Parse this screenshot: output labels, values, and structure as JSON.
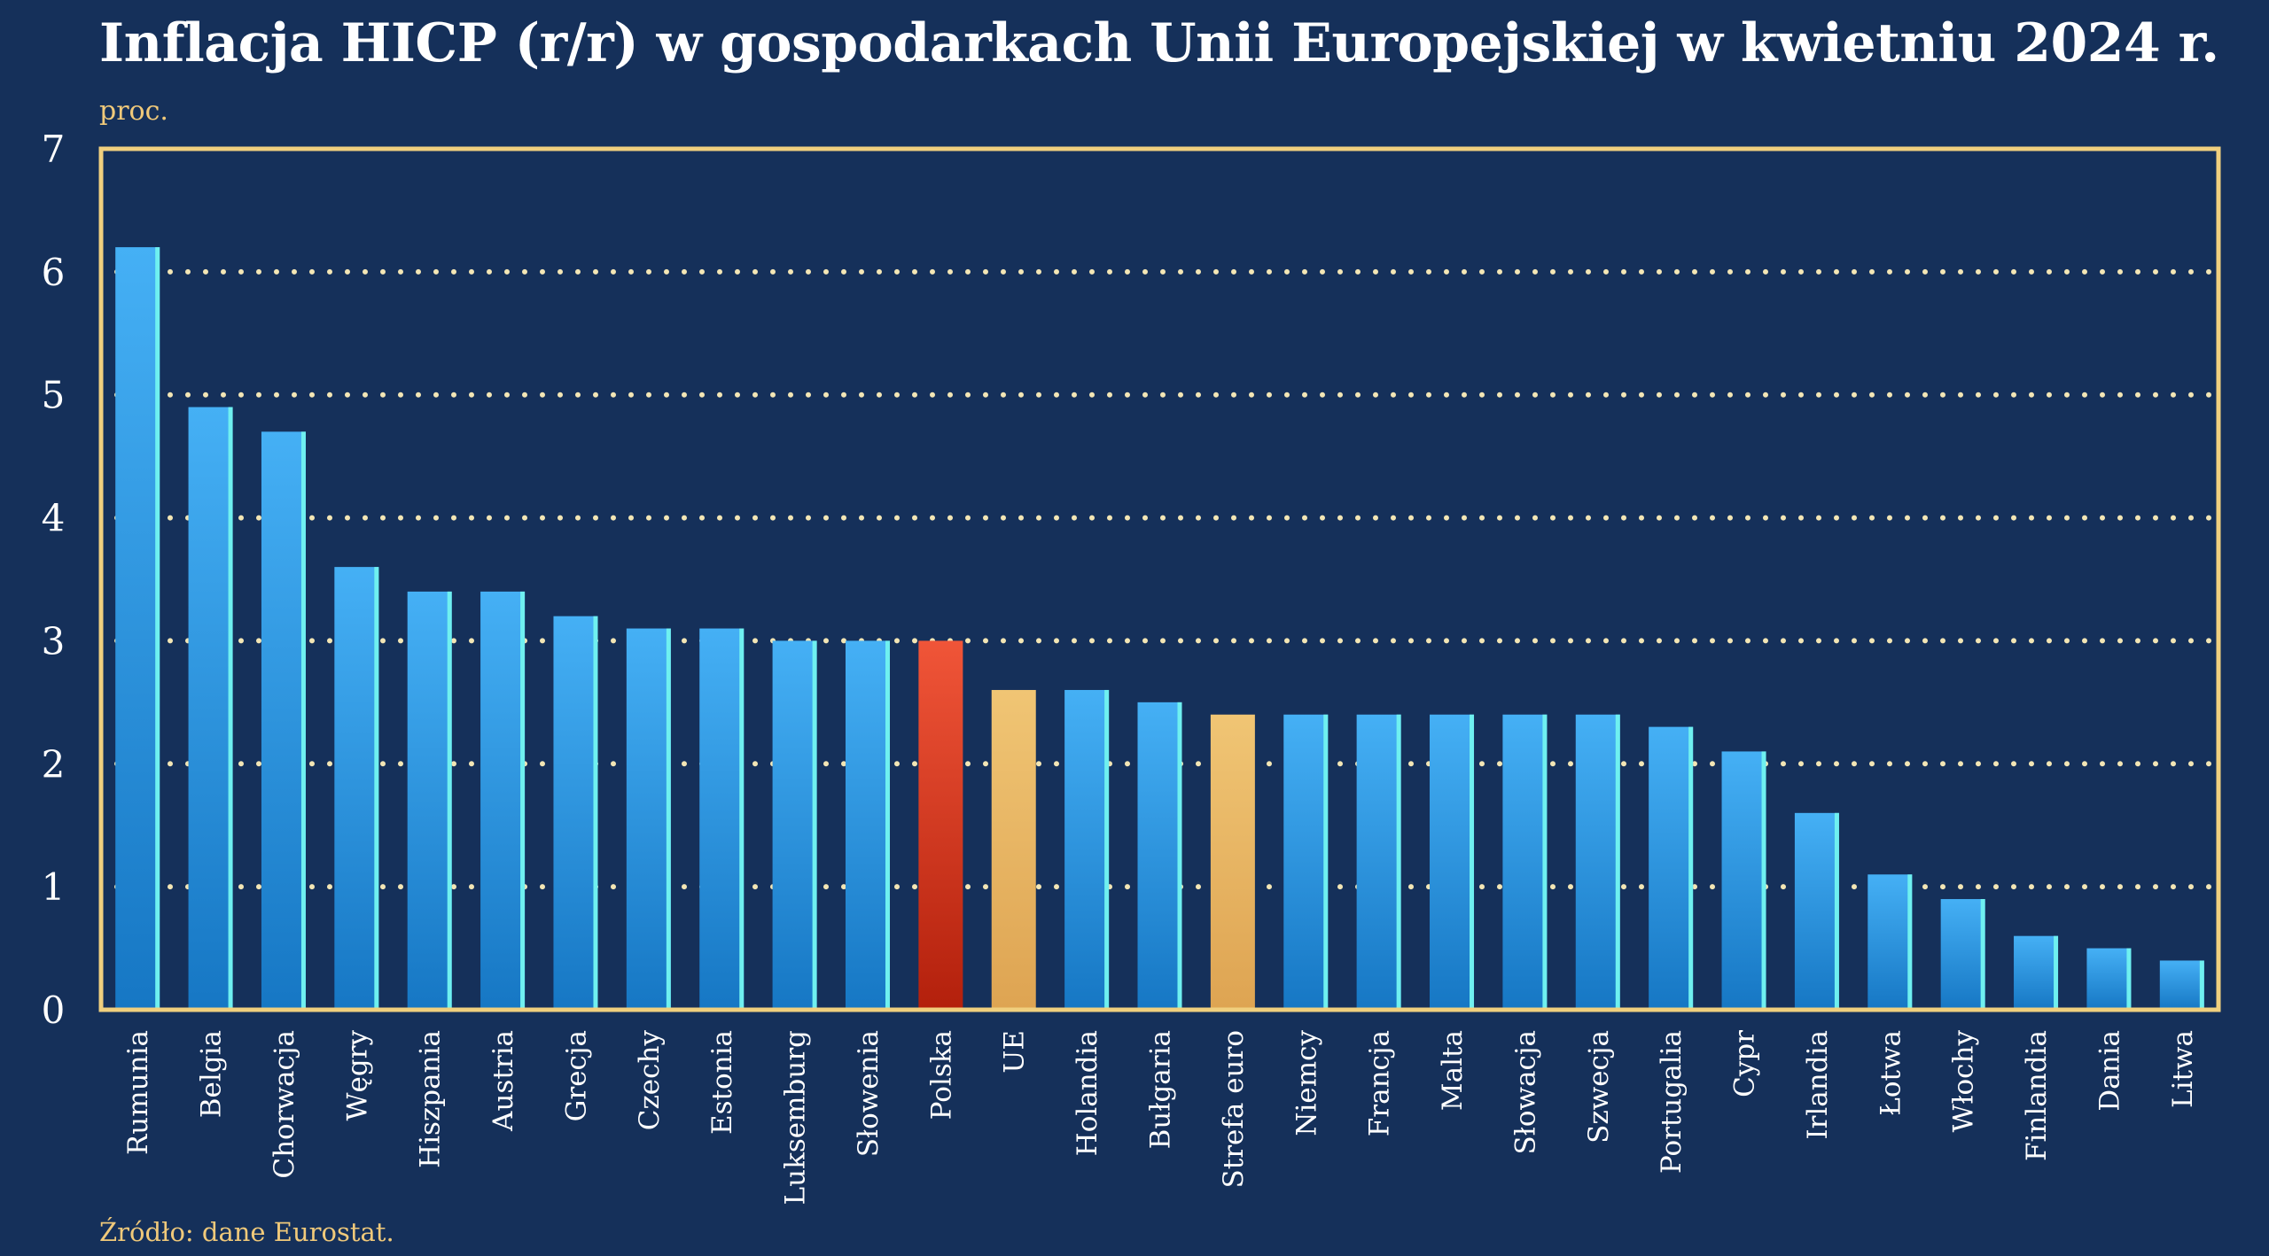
{
  "chart_data": {
    "type": "bar",
    "title": "Inflacja HICP (r/r) w gospodarkach Unii Europejskiej w kwietniu 2024 r.",
    "ylabel": "proc.",
    "xlabel": "",
    "source": "Źródło: dane Eurostat.",
    "ylim": [
      0,
      7
    ],
    "yticks": [
      "0",
      "1",
      "2",
      "3",
      "4",
      "5",
      "6",
      "7"
    ],
    "grid": true,
    "categories": [
      "Rumunia",
      "Belgia",
      "Chorwacja",
      "Węgry",
      "Hiszpania",
      "Austria",
      "Grecja",
      "Czechy",
      "Estonia",
      "Luksemburg",
      "Słowenia",
      "Polska",
      "UE",
      "Holandia",
      "Bułgaria",
      "Strefa euro",
      "Niemcy",
      "Francja",
      "Malta",
      "Słowacja",
      "Szwecja",
      "Portugalia",
      "Cypr",
      "Irlandia",
      "Łotwa",
      "Włochy",
      "Finlandia",
      "Dania",
      "Litwa"
    ],
    "values": [
      6.2,
      4.9,
      4.7,
      3.6,
      3.4,
      3.4,
      3.2,
      3.1,
      3.1,
      3.0,
      3.0,
      3.0,
      2.6,
      2.6,
      2.5,
      2.4,
      2.4,
      2.4,
      2.4,
      2.4,
      2.4,
      2.3,
      2.1,
      1.6,
      1.1,
      0.9,
      0.6,
      0.5,
      0.4
    ],
    "highlight": {
      "Polska": "red",
      "UE": "gold",
      "Strefa euro": "gold"
    },
    "colors": {
      "background": "#15305a",
      "default": "#2a9be6",
      "red": "#d8341c",
      "gold": "#e8b462",
      "frame": "#f0cf7e",
      "grid": "#f3e6b5"
    }
  }
}
